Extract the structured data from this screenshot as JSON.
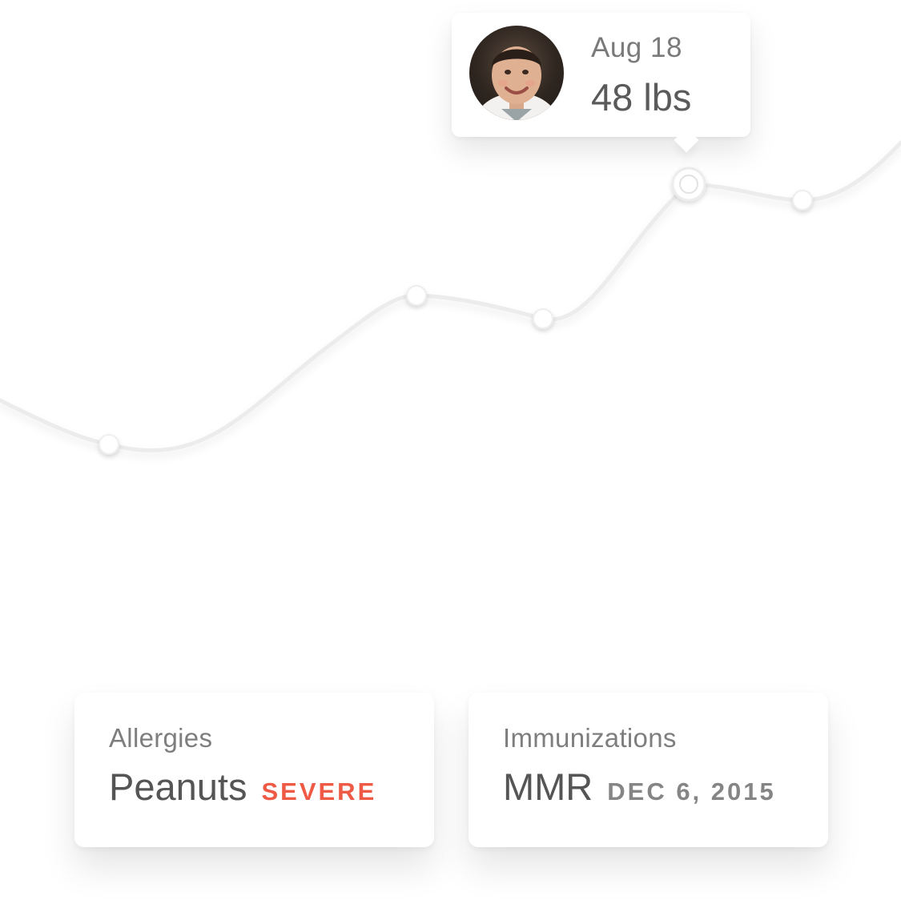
{
  "chart_data": {
    "type": "line",
    "series": [
      {
        "values": [
          null,
          null,
          null,
          48,
          null
        ]
      }
    ],
    "selected_point": {
      "date": "Aug 18",
      "value": "48 lbs"
    },
    "grid": false
  },
  "tooltip": {
    "date": "Aug 18",
    "weight": "48 lbs",
    "avatar": "child-portrait"
  },
  "cards": {
    "allergies": {
      "title": "Allergies",
      "value": "Peanuts",
      "tag": "SEVERE",
      "tag_color": "#ee5a45"
    },
    "immunizations": {
      "title": "Immunizations",
      "value": "MMR",
      "tag": "DEC 6, 2015",
      "tag_color": "#858585"
    }
  },
  "colors": {
    "background": "#ffffff",
    "line": "#ededed",
    "severe": "#ee5a45"
  }
}
